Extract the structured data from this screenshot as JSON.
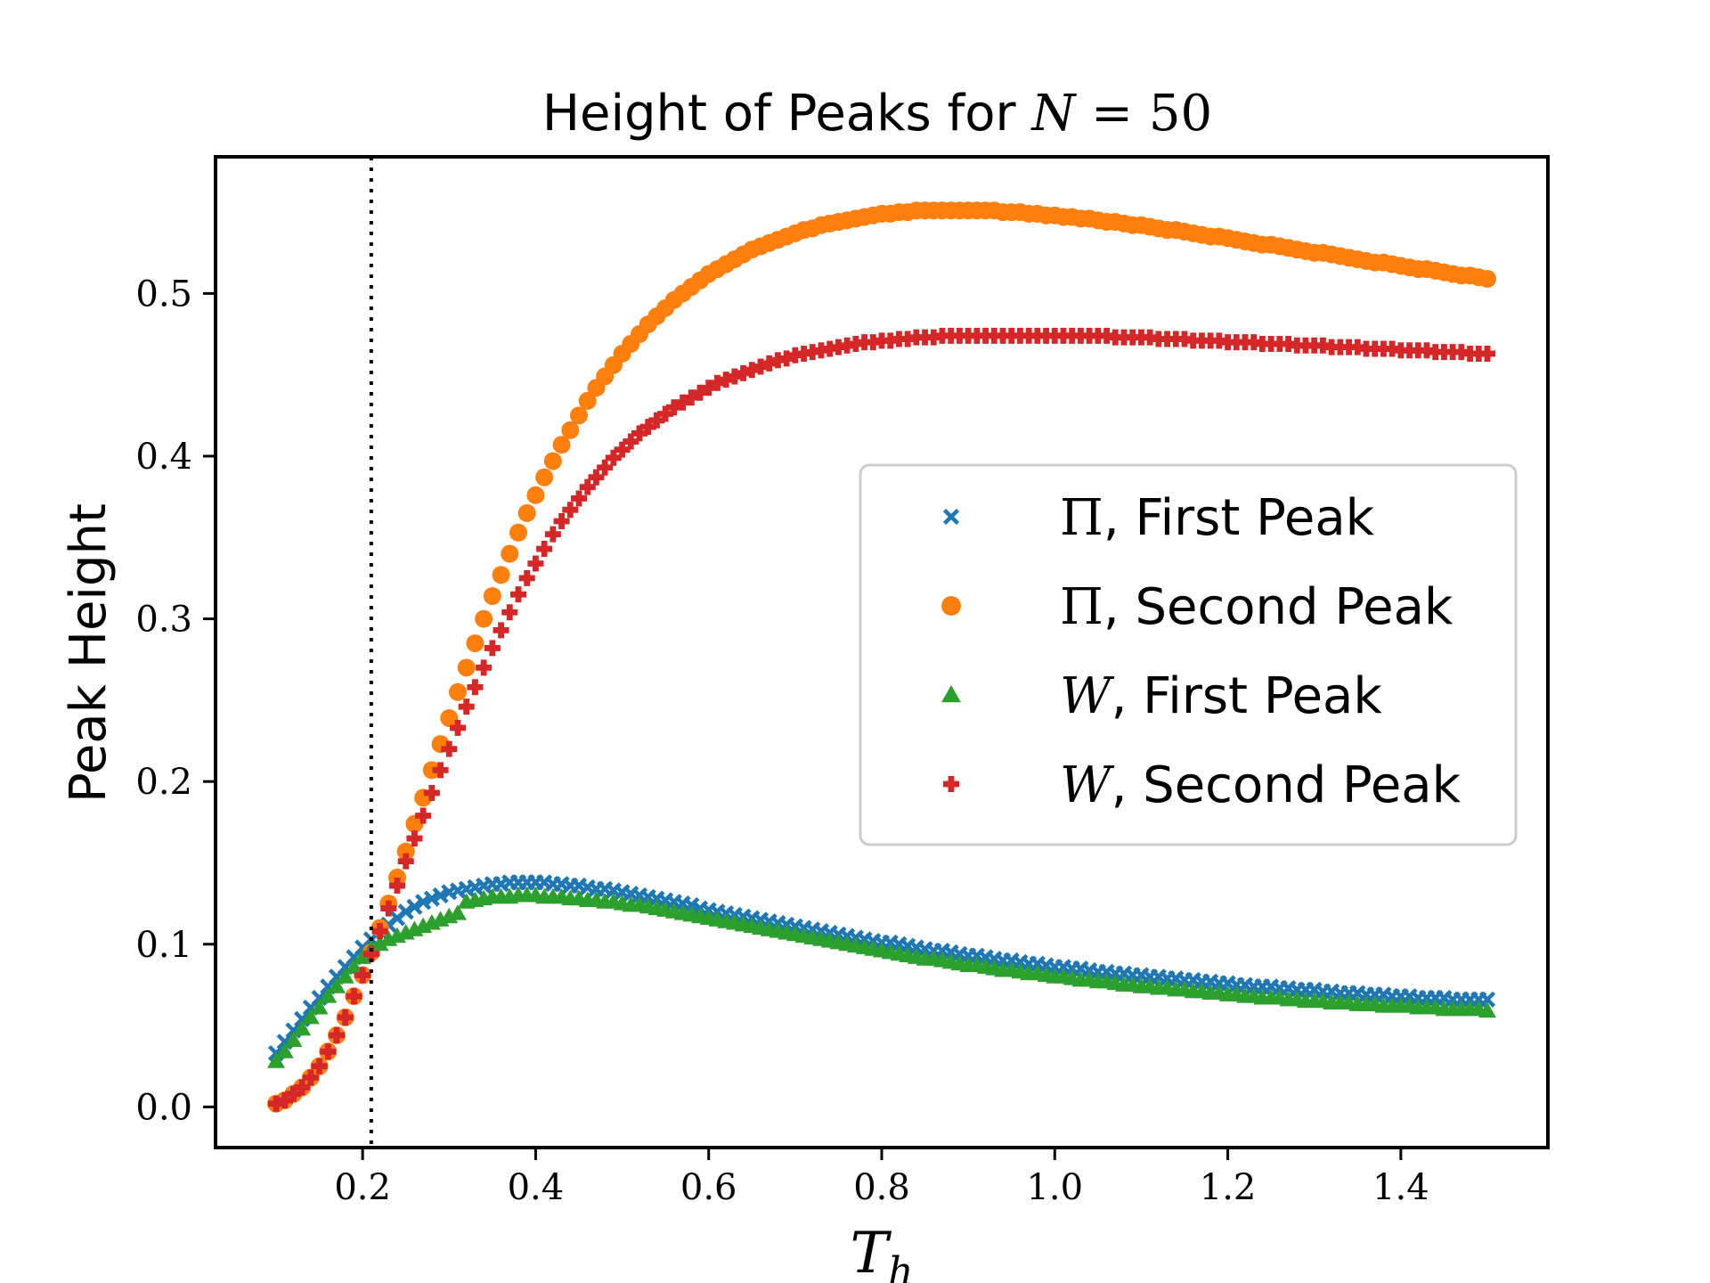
{
  "chart_data": {
    "type": "scatter",
    "title": {
      "prefix": "Height of Peaks for ",
      "math": "N",
      "equals": " = ",
      "value": "50"
    },
    "xlabel": {
      "math": "T",
      "subscript": "h"
    },
    "ylabel": "Peak Height",
    "xlim": [
      0.03,
      1.57
    ],
    "ylim": [
      -0.025,
      0.584
    ],
    "xticks": [
      0.2,
      0.4,
      0.6,
      0.8,
      1.0,
      1.2,
      1.4
    ],
    "xtick_labels": [
      "0.2",
      "0.4",
      "0.6",
      "0.8",
      "1.0",
      "1.2",
      "1.4"
    ],
    "yticks": [
      0.0,
      0.1,
      0.2,
      0.3,
      0.4,
      0.5
    ],
    "ytick_labels": [
      "0.0",
      "0.1",
      "0.2",
      "0.3",
      "0.4",
      "0.5"
    ],
    "vline": {
      "x": 0.21,
      "style": "dotted",
      "color": "#000000"
    },
    "legend_position": "center-right",
    "x": [
      0.1,
      0.11,
      0.12,
      0.13,
      0.14,
      0.15,
      0.16,
      0.17,
      0.18,
      0.19,
      0.2,
      0.21,
      0.22,
      0.23,
      0.24,
      0.25,
      0.26,
      0.27,
      0.28,
      0.29,
      0.3,
      0.31,
      0.32,
      0.33,
      0.34,
      0.35,
      0.36,
      0.37,
      0.38,
      0.39,
      0.4,
      0.41,
      0.42,
      0.43,
      0.44,
      0.45,
      0.46,
      0.47,
      0.48,
      0.49,
      0.5,
      0.51,
      0.52,
      0.53,
      0.54,
      0.55,
      0.56,
      0.57,
      0.58,
      0.59,
      0.6,
      0.61,
      0.62,
      0.63,
      0.64,
      0.65,
      0.66,
      0.67,
      0.68,
      0.69,
      0.7,
      0.71,
      0.72,
      0.73,
      0.74,
      0.75,
      0.76,
      0.77,
      0.78,
      0.79,
      0.8,
      0.81,
      0.82,
      0.83,
      0.84,
      0.85,
      0.86,
      0.87,
      0.88,
      0.89,
      0.9,
      0.91,
      0.92,
      0.93,
      0.94,
      0.95,
      0.96,
      0.97,
      0.98,
      0.99,
      1.0,
      1.01,
      1.02,
      1.03,
      1.04,
      1.05,
      1.06,
      1.07,
      1.08,
      1.09,
      1.1,
      1.11,
      1.12,
      1.13,
      1.14,
      1.15,
      1.16,
      1.17,
      1.18,
      1.19,
      1.2,
      1.21,
      1.22,
      1.23,
      1.24,
      1.25,
      1.26,
      1.27,
      1.28,
      1.29,
      1.3,
      1.31,
      1.32,
      1.33,
      1.34,
      1.35,
      1.36,
      1.37,
      1.38,
      1.39,
      1.4,
      1.41,
      1.42,
      1.43,
      1.44,
      1.45,
      1.46,
      1.47,
      1.48,
      1.49,
      1.5
    ],
    "series": [
      {
        "name_math": "Π",
        "name_text": ", First Peak",
        "marker": "x",
        "color": "#1f77b4",
        "values": [
          0.033,
          0.04,
          0.047,
          0.054,
          0.061,
          0.067,
          0.074,
          0.08,
          0.086,
          0.092,
          0.098,
          0.103,
          0.108,
          0.112,
          0.116,
          0.12,
          0.123,
          0.126,
          0.128,
          0.13,
          0.132,
          0.133,
          0.134,
          0.135,
          0.136,
          0.137,
          0.137,
          0.138,
          0.138,
          0.138,
          0.138,
          0.138,
          0.137,
          0.137,
          0.136,
          0.136,
          0.135,
          0.134,
          0.134,
          0.133,
          0.132,
          0.131,
          0.13,
          0.129,
          0.128,
          0.127,
          0.126,
          0.125,
          0.124,
          0.122,
          0.121,
          0.12,
          0.119,
          0.118,
          0.117,
          0.116,
          0.115,
          0.114,
          0.113,
          0.112,
          0.111,
          0.11,
          0.109,
          0.108,
          0.107,
          0.106,
          0.105,
          0.104,
          0.103,
          0.102,
          0.101,
          0.101,
          0.1,
          0.099,
          0.098,
          0.097,
          0.096,
          0.096,
          0.095,
          0.094,
          0.093,
          0.093,
          0.092,
          0.091,
          0.09,
          0.09,
          0.089,
          0.088,
          0.088,
          0.087,
          0.086,
          0.086,
          0.085,
          0.085,
          0.084,
          0.083,
          0.083,
          0.082,
          0.082,
          0.081,
          0.081,
          0.08,
          0.08,
          0.079,
          0.079,
          0.078,
          0.078,
          0.077,
          0.077,
          0.076,
          0.076,
          0.075,
          0.075,
          0.074,
          0.074,
          0.074,
          0.073,
          0.073,
          0.072,
          0.072,
          0.072,
          0.071,
          0.071,
          0.07,
          0.07,
          0.07,
          0.069,
          0.069,
          0.069,
          0.068,
          0.068,
          0.068,
          0.067,
          0.067,
          0.067,
          0.067,
          0.066,
          0.066,
          0.066,
          0.066,
          0.066
        ]
      },
      {
        "name_math": "Π",
        "name_text": ", Second Peak",
        "marker": "o",
        "color": "#ff7f0e",
        "values": [
          0.002,
          0.004,
          0.008,
          0.012,
          0.018,
          0.025,
          0.034,
          0.044,
          0.055,
          0.068,
          0.081,
          0.095,
          0.11,
          0.125,
          0.141,
          0.157,
          0.174,
          0.19,
          0.207,
          0.223,
          0.239,
          0.255,
          0.27,
          0.285,
          0.3,
          0.314,
          0.327,
          0.34,
          0.353,
          0.365,
          0.376,
          0.387,
          0.397,
          0.407,
          0.416,
          0.425,
          0.434,
          0.442,
          0.449,
          0.456,
          0.463,
          0.469,
          0.475,
          0.481,
          0.486,
          0.491,
          0.496,
          0.5,
          0.504,
          0.508,
          0.512,
          0.515,
          0.518,
          0.521,
          0.524,
          0.527,
          0.529,
          0.531,
          0.533,
          0.535,
          0.537,
          0.539,
          0.54,
          0.542,
          0.543,
          0.544,
          0.545,
          0.546,
          0.547,
          0.548,
          0.549,
          0.549,
          0.55,
          0.55,
          0.551,
          0.551,
          0.551,
          0.551,
          0.551,
          0.551,
          0.551,
          0.551,
          0.551,
          0.551,
          0.55,
          0.55,
          0.55,
          0.549,
          0.549,
          0.548,
          0.548,
          0.547,
          0.547,
          0.546,
          0.546,
          0.545,
          0.544,
          0.544,
          0.543,
          0.542,
          0.542,
          0.541,
          0.54,
          0.539,
          0.539,
          0.538,
          0.537,
          0.536,
          0.535,
          0.535,
          0.534,
          0.533,
          0.532,
          0.531,
          0.53,
          0.53,
          0.529,
          0.528,
          0.527,
          0.526,
          0.525,
          0.525,
          0.524,
          0.523,
          0.522,
          0.521,
          0.52,
          0.519,
          0.519,
          0.518,
          0.517,
          0.516,
          0.515,
          0.515,
          0.514,
          0.513,
          0.512,
          0.511,
          0.511,
          0.51,
          0.509
        ]
      },
      {
        "name_math": "W",
        "name_text": ", First Peak",
        "marker": "^",
        "color": "#2ca02c",
        "values": [
          0.028,
          0.034,
          0.041,
          0.048,
          0.055,
          0.061,
          0.068,
          0.074,
          0.08,
          0.086,
          0.092,
          0.097,
          0.1,
          0.103,
          0.105,
          0.107,
          0.109,
          0.111,
          0.113,
          0.115,
          0.117,
          0.119,
          0.126,
          0.127,
          0.128,
          0.129,
          0.129,
          0.129,
          0.13,
          0.13,
          0.13,
          0.129,
          0.129,
          0.129,
          0.128,
          0.128,
          0.127,
          0.127,
          0.126,
          0.126,
          0.125,
          0.124,
          0.124,
          0.123,
          0.122,
          0.121,
          0.12,
          0.119,
          0.118,
          0.117,
          0.116,
          0.115,
          0.114,
          0.113,
          0.112,
          0.111,
          0.11,
          0.109,
          0.108,
          0.107,
          0.106,
          0.105,
          0.104,
          0.103,
          0.102,
          0.101,
          0.1,
          0.099,
          0.098,
          0.097,
          0.096,
          0.095,
          0.094,
          0.093,
          0.092,
          0.091,
          0.091,
          0.09,
          0.089,
          0.088,
          0.087,
          0.087,
          0.086,
          0.085,
          0.084,
          0.084,
          0.083,
          0.082,
          0.082,
          0.081,
          0.08,
          0.08,
          0.079,
          0.078,
          0.078,
          0.077,
          0.077,
          0.076,
          0.075,
          0.075,
          0.074,
          0.074,
          0.073,
          0.073,
          0.072,
          0.072,
          0.071,
          0.071,
          0.07,
          0.07,
          0.069,
          0.069,
          0.068,
          0.068,
          0.067,
          0.067,
          0.067,
          0.066,
          0.066,
          0.065,
          0.065,
          0.065,
          0.064,
          0.064,
          0.064,
          0.063,
          0.063,
          0.063,
          0.062,
          0.062,
          0.062,
          0.062,
          0.061,
          0.061,
          0.061,
          0.06,
          0.06,
          0.06,
          0.06,
          0.06,
          0.059
        ]
      },
      {
        "name_math": "W",
        "name_text": ", Second Peak",
        "marker": "P",
        "color": "#d62728",
        "values": [
          0.002,
          0.004,
          0.008,
          0.012,
          0.018,
          0.025,
          0.034,
          0.044,
          0.055,
          0.068,
          0.081,
          0.094,
          0.108,
          0.122,
          0.136,
          0.151,
          0.165,
          0.179,
          0.193,
          0.207,
          0.22,
          0.233,
          0.246,
          0.258,
          0.27,
          0.282,
          0.293,
          0.304,
          0.315,
          0.325,
          0.334,
          0.343,
          0.352,
          0.36,
          0.367,
          0.374,
          0.381,
          0.387,
          0.393,
          0.399,
          0.404,
          0.409,
          0.414,
          0.418,
          0.422,
          0.426,
          0.43,
          0.433,
          0.436,
          0.439,
          0.442,
          0.445,
          0.447,
          0.449,
          0.451,
          0.453,
          0.455,
          0.457,
          0.459,
          0.46,
          0.462,
          0.463,
          0.464,
          0.465,
          0.466,
          0.467,
          0.468,
          0.469,
          0.47,
          0.47,
          0.471,
          0.471,
          0.472,
          0.472,
          0.473,
          0.473,
          0.473,
          0.474,
          0.474,
          0.474,
          0.474,
          0.474,
          0.474,
          0.474,
          0.474,
          0.474,
          0.474,
          0.474,
          0.474,
          0.474,
          0.474,
          0.474,
          0.474,
          0.474,
          0.474,
          0.474,
          0.474,
          0.473,
          0.473,
          0.473,
          0.473,
          0.473,
          0.472,
          0.472,
          0.472,
          0.472,
          0.471,
          0.471,
          0.471,
          0.471,
          0.47,
          0.47,
          0.47,
          0.47,
          0.469,
          0.469,
          0.469,
          0.469,
          0.468,
          0.468,
          0.468,
          0.468,
          0.467,
          0.467,
          0.467,
          0.467,
          0.466,
          0.466,
          0.466,
          0.466,
          0.465,
          0.465,
          0.465,
          0.465,
          0.464,
          0.464,
          0.464,
          0.464,
          0.463,
          0.463,
          0.463
        ]
      }
    ]
  }
}
